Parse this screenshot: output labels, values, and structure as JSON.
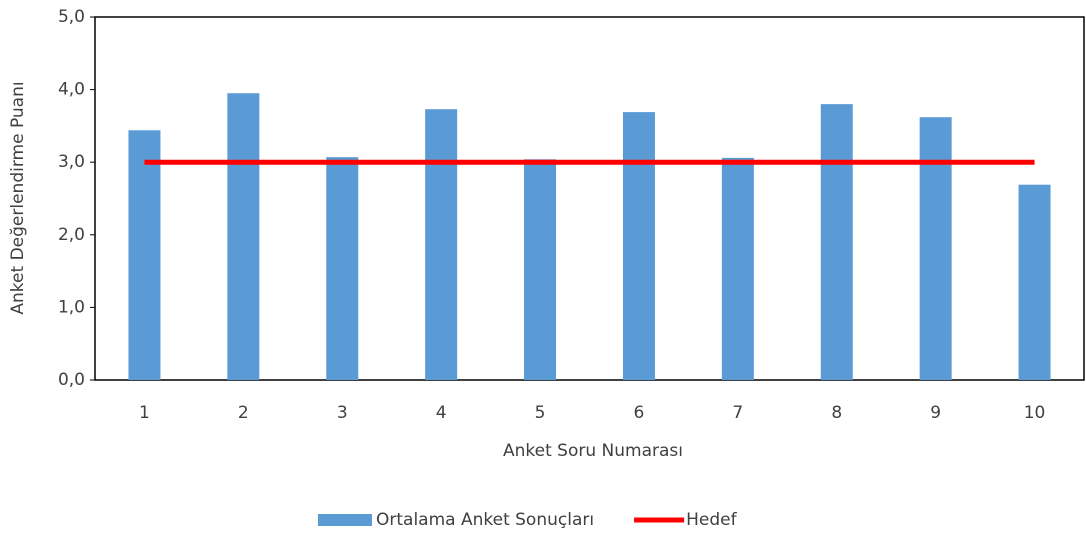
{
  "chart_data": {
    "type": "bar",
    "x_label": "Anket Soru Numarası",
    "y_label": "Anket Değerlendirme Puanı",
    "categories": [
      "1",
      "2",
      "3",
      "4",
      "5",
      "6",
      "7",
      "8",
      "9",
      "10"
    ],
    "series": [
      {
        "name": "Ortalama Anket Sonuçları",
        "type": "bar",
        "color": "#5b9bd5",
        "values": [
          3.44,
          3.95,
          3.07,
          3.73,
          3.04,
          3.69,
          3.06,
          3.8,
          3.62,
          2.69
        ]
      },
      {
        "name": "Hedef",
        "type": "line",
        "color": "#ff0000",
        "values": [
          3,
          3,
          3,
          3,
          3,
          3,
          3,
          3,
          3,
          3
        ]
      }
    ],
    "ylim": [
      0,
      5
    ],
    "yticks": [
      {
        "value": 0,
        "label": "0,0"
      },
      {
        "value": 1,
        "label": "1,0"
      },
      {
        "value": 2,
        "label": "2,0"
      },
      {
        "value": 3,
        "label": "3,0"
      },
      {
        "value": 4,
        "label": "4,0"
      },
      {
        "value": 5,
        "label": "5,0"
      }
    ],
    "grid": false,
    "legend": "bottom"
  }
}
